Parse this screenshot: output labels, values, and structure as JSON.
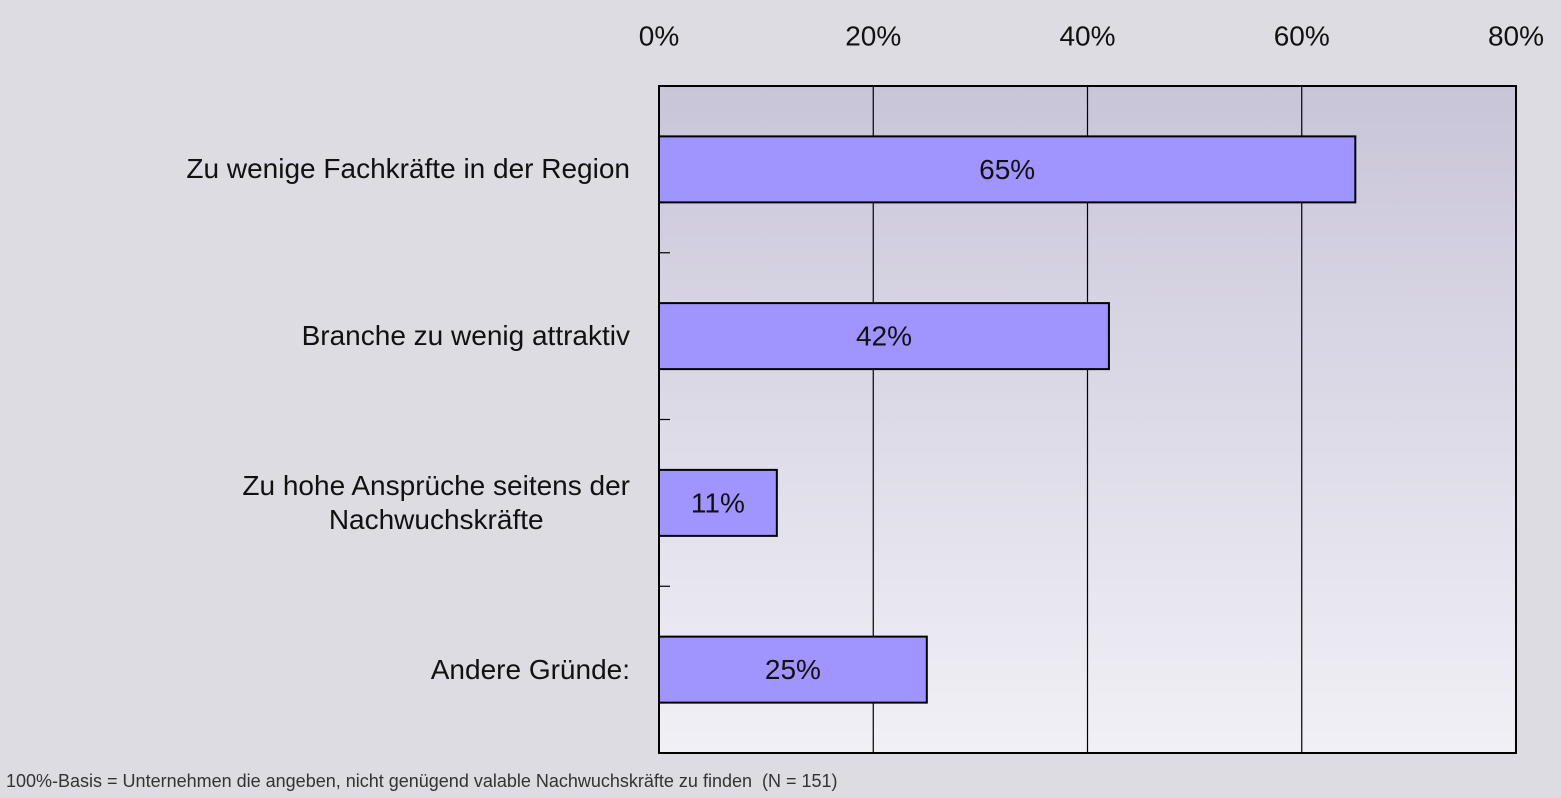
{
  "chart_data": {
    "type": "barh",
    "categories": [
      "Zu wenige Fachkräfte in der Region",
      "Branche zu wenig attraktiv",
      "Zu hohe Ansprüche seitens der\nNachwuchskräfte",
      "Andere Gründe:"
    ],
    "values": [
      65,
      42,
      11,
      25
    ],
    "value_labels": [
      "65%",
      "42%",
      "11%",
      "25%"
    ],
    "color": "#a094ff",
    "xlim": [
      0,
      80
    ],
    "xticks": [
      {
        "value": 0,
        "label": "0%"
      },
      {
        "value": 20,
        "label": "20%"
      },
      {
        "value": 40,
        "label": "40%"
      },
      {
        "value": 60,
        "label": "60%"
      },
      {
        "value": 80,
        "label": "80%"
      }
    ],
    "grid": true,
    "note": "100%-Basis = Unternehmen die angeben, nicht genügend valable Nachwuchskräfte zu finden  (N = 151)"
  }
}
